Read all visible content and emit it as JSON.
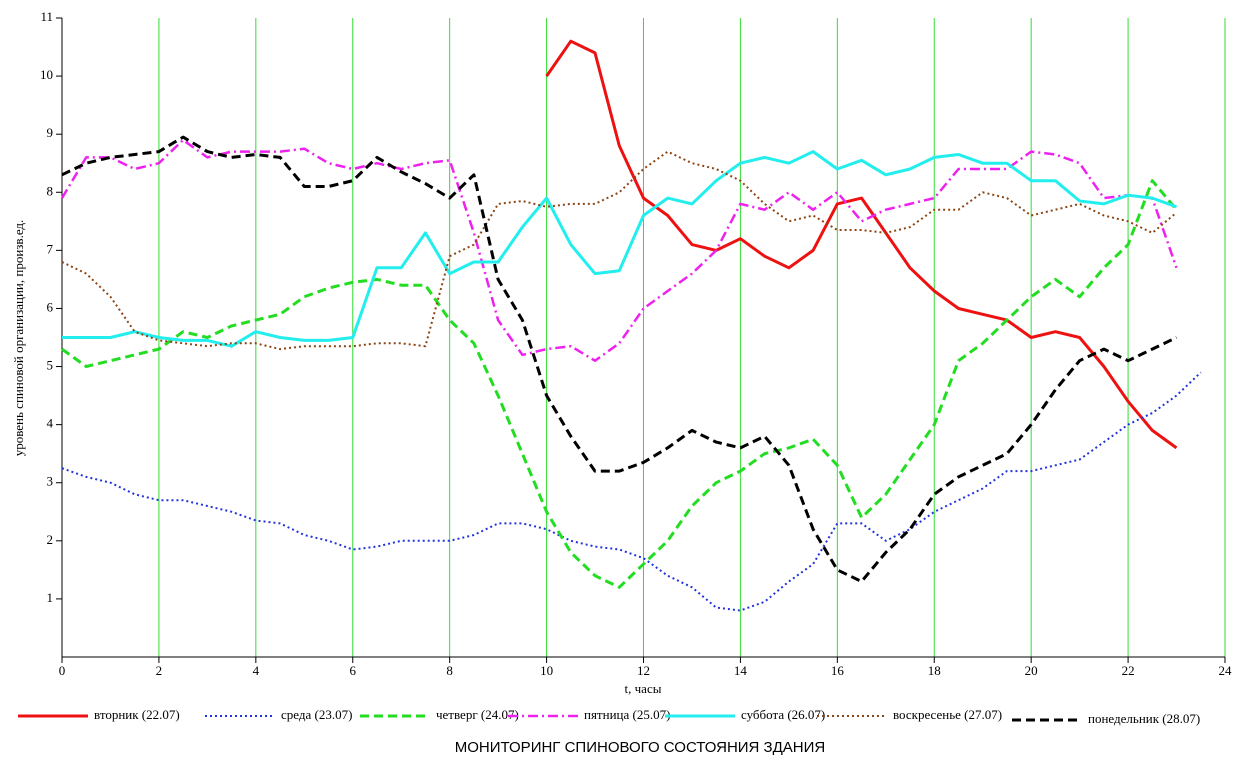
{
  "chart_data": {
    "type": "line",
    "title": "МОНИТОРИНГ СПИНОВОГО СОСТОЯНИЯ ЗДАНИЯ",
    "x_label": "t, часы",
    "y_label": "уровень спиновой организации, произв.ед.",
    "xlim": [
      0,
      24
    ],
    "xticks": [
      0,
      2,
      4,
      6,
      8,
      10,
      12,
      14,
      16,
      18,
      20,
      22,
      24
    ],
    "ylim": [
      0,
      11
    ],
    "yticks": [
      1,
      2,
      3,
      4,
      5,
      6,
      7,
      8,
      9,
      10,
      11
    ],
    "grid": true,
    "grid_color": "#33dd33",
    "legend": "bottom",
    "x": [
      0,
      0.5,
      1,
      1.5,
      2,
      2.5,
      3,
      3.5,
      4,
      4.5,
      5,
      5.5,
      6,
      6.5,
      7,
      7.5,
      8,
      8.5,
      9,
      9.5,
      10,
      10.5,
      11,
      11.5,
      12,
      12.5,
      13,
      13.5,
      14,
      14.5,
      15,
      15.5,
      16,
      16.5,
      17,
      17.5,
      18,
      18.5,
      19,
      19.5,
      20,
      20.5,
      21,
      21.5,
      22,
      22.5,
      23,
      23.5
    ],
    "series": [
      {
        "name": "вторник (22.07)",
        "color": "#ee1111",
        "style": "solid",
        "values": [
          null,
          null,
          null,
          null,
          null,
          null,
          null,
          null,
          null,
          null,
          null,
          null,
          null,
          null,
          null,
          null,
          null,
          null,
          null,
          null,
          10.0,
          10.6,
          10.4,
          8.8,
          7.9,
          7.6,
          7.1,
          7.0,
          7.2,
          6.9,
          6.7,
          7.0,
          7.8,
          7.9,
          7.3,
          6.7,
          6.3,
          6.0,
          5.9,
          5.8,
          5.5,
          5.6,
          5.5,
          5.0,
          4.4,
          3.9,
          3.6,
          null
        ]
      },
      {
        "name": "среда (23.07)",
        "color": "#2233dd",
        "style": "dotted",
        "values": [
          3.25,
          3.1,
          3.0,
          2.8,
          2.7,
          2.7,
          2.6,
          2.5,
          2.35,
          2.3,
          2.1,
          2.0,
          1.85,
          1.9,
          2.0,
          2.0,
          2.0,
          2.1,
          2.3,
          2.3,
          2.2,
          2.0,
          1.9,
          1.85,
          1.7,
          1.4,
          1.2,
          0.85,
          0.8,
          0.95,
          1.3,
          1.6,
          2.3,
          2.3,
          2.0,
          2.2,
          2.5,
          2.7,
          2.9,
          3.2,
          3.2,
          3.3,
          3.4,
          3.7,
          4.0,
          4.2,
          4.5,
          4.9
        ]
      },
      {
        "name": "четверг (24.07)",
        "color": "#22dd22",
        "style": "dashed",
        "values": [
          5.3,
          5.0,
          5.1,
          5.2,
          5.3,
          5.6,
          5.5,
          5.7,
          5.8,
          5.9,
          6.2,
          6.35,
          6.45,
          6.5,
          6.4,
          6.4,
          5.8,
          5.4,
          4.5,
          3.5,
          2.5,
          1.8,
          1.4,
          1.2,
          1.6,
          2.0,
          2.6,
          3.0,
          3.2,
          3.5,
          3.6,
          3.75,
          3.3,
          2.4,
          2.8,
          3.4,
          4.0,
          5.1,
          5.4,
          5.8,
          6.2,
          6.5,
          6.2,
          6.7,
          7.1,
          8.2,
          7.7,
          null
        ]
      },
      {
        "name": "пятница (25.07)",
        "color": "#ee22ee",
        "style": "dashdot",
        "values": [
          7.9,
          8.6,
          8.6,
          8.4,
          8.5,
          8.9,
          8.6,
          8.7,
          8.7,
          8.7,
          8.75,
          8.5,
          8.4,
          8.5,
          8.4,
          8.5,
          8.55,
          7.3,
          5.8,
          5.2,
          5.3,
          5.35,
          5.1,
          5.4,
          6.0,
          6.3,
          6.6,
          7.0,
          7.8,
          7.7,
          8.0,
          7.7,
          8.0,
          7.5,
          7.7,
          7.8,
          7.9,
          8.4,
          8.4,
          8.4,
          8.7,
          8.65,
          8.5,
          7.9,
          7.95,
          7.9,
          6.7,
          null
        ]
      },
      {
        "name": "суббота (26.07)",
        "color": "#22eeee",
        "style": "solid",
        "values": [
          5.5,
          5.5,
          5.5,
          5.6,
          5.5,
          5.45,
          5.45,
          5.35,
          5.6,
          5.5,
          5.45,
          5.45,
          5.5,
          6.7,
          6.7,
          7.3,
          6.6,
          6.8,
          6.8,
          7.4,
          7.9,
          7.1,
          6.6,
          6.65,
          7.6,
          7.9,
          7.8,
          8.2,
          8.5,
          8.6,
          8.5,
          8.7,
          8.4,
          8.55,
          8.3,
          8.4,
          8.6,
          8.65,
          8.5,
          8.5,
          8.2,
          8.2,
          7.85,
          7.8,
          7.95,
          7.9,
          7.75,
          null
        ]
      },
      {
        "name": "воскресенье (27.07)",
        "color": "#8b4513",
        "style": "dotted",
        "values": [
          6.8,
          6.6,
          6.2,
          5.6,
          5.45,
          5.4,
          5.35,
          5.4,
          5.4,
          5.3,
          5.35,
          5.35,
          5.35,
          5.4,
          5.4,
          5.35,
          6.9,
          7.1,
          7.8,
          7.85,
          7.75,
          7.8,
          7.8,
          8.0,
          8.4,
          8.7,
          8.5,
          8.4,
          8.2,
          7.8,
          7.5,
          7.6,
          7.35,
          7.35,
          7.3,
          7.4,
          7.7,
          7.7,
          8.0,
          7.9,
          7.6,
          7.7,
          7.8,
          7.6,
          7.5,
          7.3,
          7.65,
          null
        ]
      },
      {
        "name": "понедельник (28.07)",
        "color": "#000000",
        "style": "dashed",
        "values": [
          8.3,
          8.5,
          8.6,
          8.65,
          8.7,
          8.95,
          8.7,
          8.6,
          8.65,
          8.6,
          8.1,
          8.1,
          8.2,
          8.6,
          8.35,
          8.15,
          7.9,
          8.3,
          6.5,
          5.8,
          4.5,
          3.8,
          3.2,
          3.2,
          3.35,
          3.6,
          3.9,
          3.7,
          3.6,
          3.8,
          3.3,
          2.2,
          1.5,
          1.3,
          1.8,
          2.2,
          2.8,
          3.1,
          3.3,
          3.5,
          4.0,
          4.6,
          5.1,
          5.3,
          5.1,
          5.3,
          5.5,
          null
        ]
      }
    ]
  }
}
